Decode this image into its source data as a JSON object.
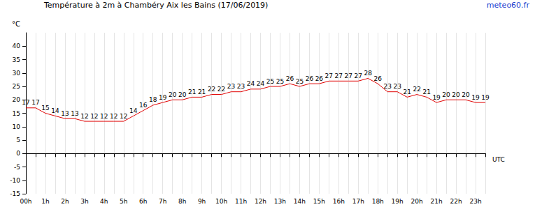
{
  "chart_data": {
    "type": "line",
    "title": "Température à 2m à Chambéry Aix les Bains (17/06/2019)",
    "annotations": [
      "meteo60.fr"
    ],
    "ylabel": "°C",
    "xlabel": "UTC",
    "categories": [
      "00h",
      null,
      "1h",
      null,
      "2h",
      null,
      "3h",
      null,
      "4h",
      null,
      "5h",
      null,
      "6h",
      null,
      "7h",
      null,
      "8h",
      null,
      "9h",
      null,
      "10h",
      null,
      "11h",
      null,
      "12h",
      null,
      "13h",
      null,
      "14h",
      null,
      "15h",
      null,
      "16h",
      null,
      "17h",
      null,
      "18h",
      null,
      "19h",
      null,
      "20h",
      null,
      "21h",
      null,
      "22h",
      null,
      "23h",
      null
    ],
    "values": [
      17,
      17,
      15,
      14,
      13,
      13,
      12,
      12,
      12,
      12,
      12,
      14,
      16,
      18,
      19,
      20,
      20,
      21,
      21,
      22,
      22,
      23,
      23,
      24,
      24,
      25,
      25,
      26,
      25,
      26,
      26,
      27,
      27,
      27,
      27,
      28,
      26,
      23,
      23,
      21,
      22,
      21,
      19,
      20,
      20,
      20,
      19,
      19
    ],
    "color": "#e00000",
    "ylim": [
      -15,
      45
    ],
    "yticks": [
      -15,
      -10,
      -5,
      0,
      5,
      10,
      15,
      20,
      25,
      30,
      35,
      40
    ],
    "grid": true,
    "data_labels": true
  }
}
